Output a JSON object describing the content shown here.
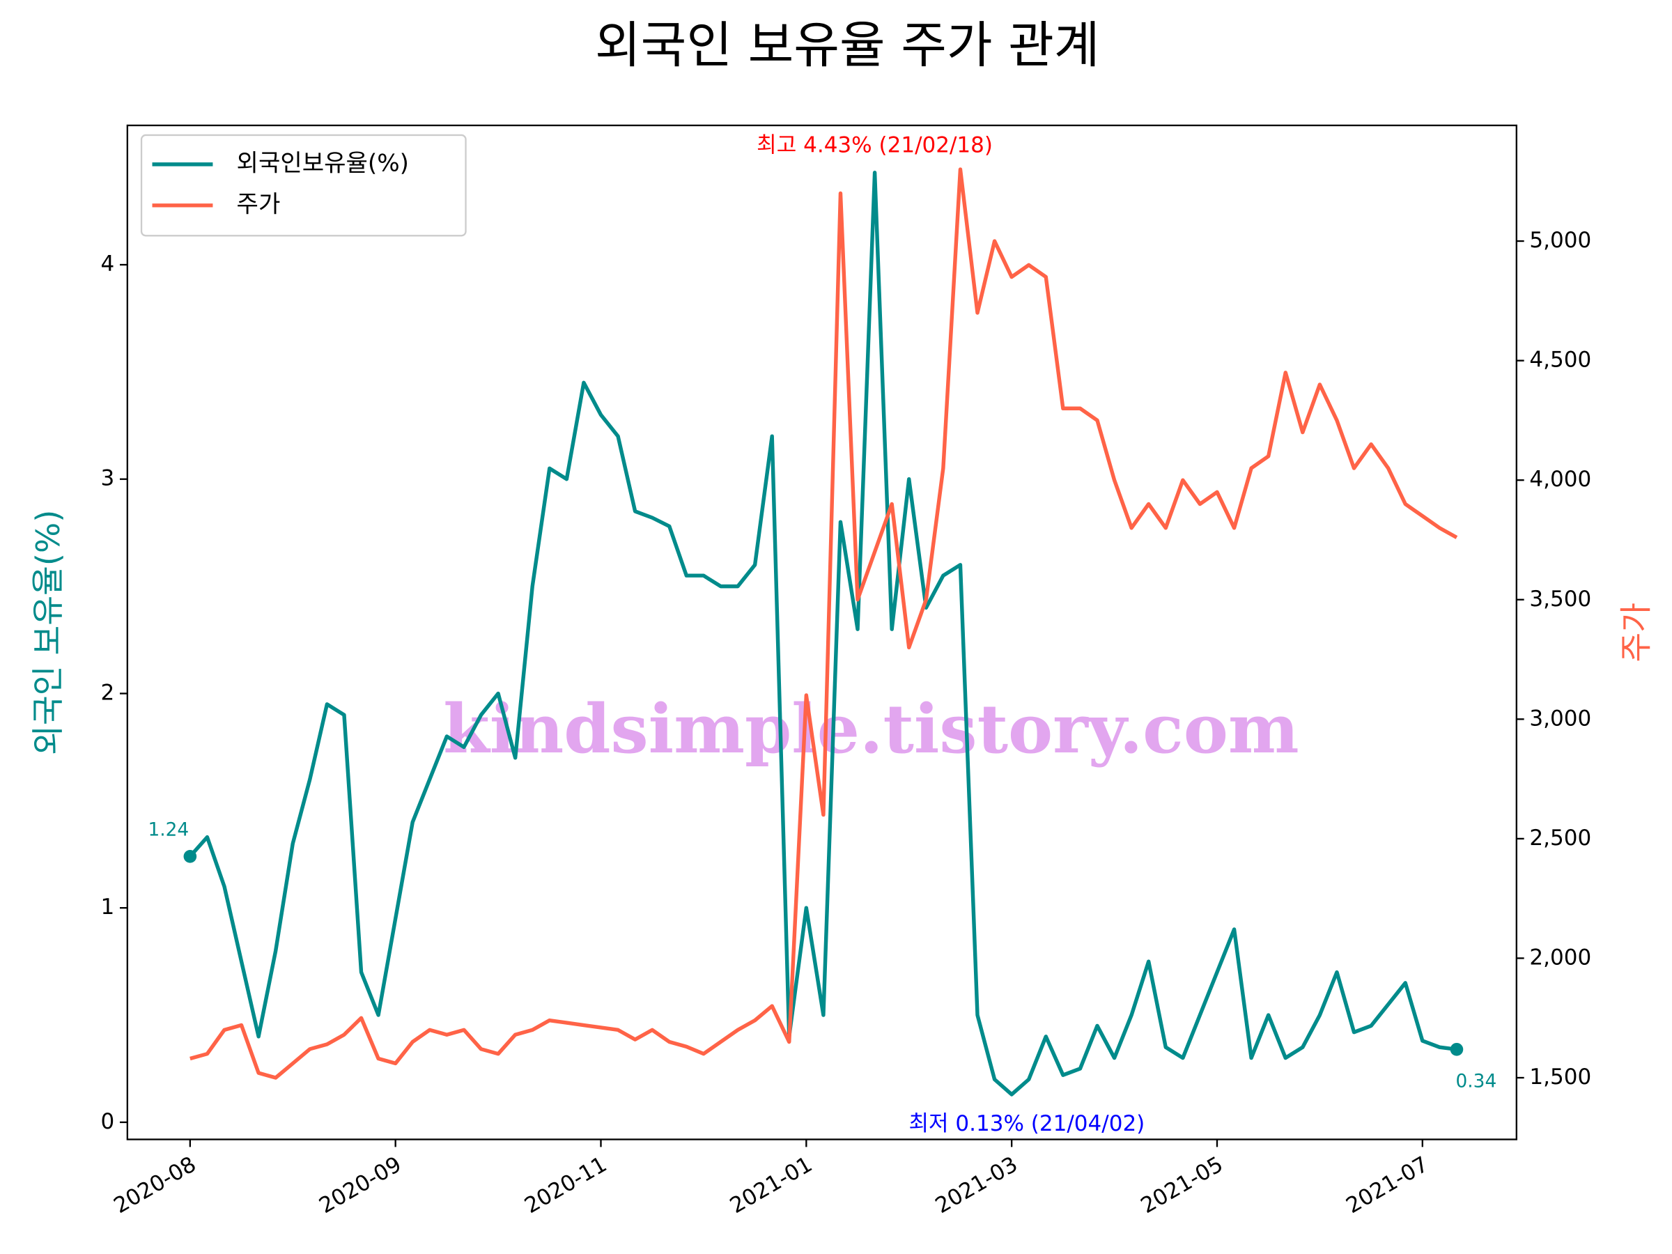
{
  "chart_data": {
    "type": "line",
    "title": "외국인 보유율 주가 관계",
    "ylabel": "외국인 보유율(%)",
    "y2label": "주가",
    "watermark": "kindsimple.tistory.com",
    "categories": [
      "2020-08",
      null,
      null,
      null,
      null,
      null,
      null,
      null,
      null,
      null,
      null,
      null,
      "2020-09",
      null,
      null,
      null,
      null,
      null,
      null,
      null,
      null,
      null,
      null,
      null,
      "2020-11",
      null,
      null,
      null,
      null,
      null,
      null,
      null,
      null,
      null,
      null,
      null,
      "2021-01",
      null,
      null,
      null,
      null,
      null,
      null,
      null,
      null,
      null,
      null,
      null,
      "2021-03",
      null,
      null,
      null,
      null,
      null,
      null,
      null,
      null,
      null,
      null,
      null,
      "2021-05",
      null,
      null,
      null,
      null,
      null,
      null,
      null,
      null,
      null,
      null,
      null,
      "2021-07",
      null,
      null
    ],
    "series": [
      {
        "name": "외국인보유율(%)",
        "color": "#008b8b",
        "values": [
          1.24,
          1.33,
          1.1,
          0.75,
          0.4,
          0.8,
          1.3,
          1.6,
          1.95,
          1.9,
          0.7,
          0.5,
          0.95,
          1.4,
          1.6,
          1.8,
          1.75,
          1.9,
          2.0,
          1.7,
          2.5,
          3.05,
          3.0,
          3.45,
          3.3,
          3.2,
          2.85,
          2.82,
          2.78,
          2.55,
          2.55,
          2.5,
          2.5,
          2.6,
          3.2,
          0.4,
          1.0,
          0.5,
          2.8,
          2.3,
          4.43,
          2.3,
          3.0,
          2.4,
          2.55,
          2.6,
          0.5,
          0.2,
          0.13,
          0.2,
          0.4,
          0.22,
          0.25,
          0.45,
          0.3,
          0.5,
          0.75,
          0.35,
          0.3,
          0.5,
          0.7,
          0.9,
          0.3,
          0.5,
          0.3,
          0.35,
          0.5,
          0.7,
          0.42,
          0.45,
          0.55,
          0.65,
          0.38,
          0.35,
          0.34
        ]
      },
      {
        "name": "주가",
        "color": "#ff6347",
        "axis": "y2",
        "values": [
          1580,
          1600,
          1700,
          1720,
          1520,
          1500,
          1560,
          1620,
          1640,
          1680,
          1750,
          1580,
          1560,
          1650,
          1700,
          1680,
          1700,
          1620,
          1600,
          1680,
          1700,
          1740,
          1730,
          1720,
          1710,
          1700,
          1660,
          1700,
          1650,
          1630,
          1600,
          1650,
          1700,
          1740,
          1800,
          1650,
          3100,
          2600,
          5200,
          3500,
          3700,
          3900,
          3300,
          3500,
          4050,
          5300,
          4700,
          5000,
          4850,
          4900,
          4850,
          4300,
          4300,
          4250,
          4000,
          3800,
          3900,
          3800,
          4000,
          3900,
          3950,
          3800,
          4050,
          4100,
          4450,
          4200,
          4400,
          4250,
          4050,
          4150,
          4050,
          3900,
          3850,
          3800,
          3760
        ]
      }
    ],
    "ylim": [
      -0.08,
      4.65
    ],
    "yticks": [
      0,
      1,
      2,
      3,
      4
    ],
    "y2lim": [
      1242,
      5484
    ],
    "y2ticks": [
      {
        "value": 1500,
        "label": "1,500"
      },
      {
        "value": 2000,
        "label": "2,000"
      },
      {
        "value": 2500,
        "label": "2,500"
      },
      {
        "value": 3000,
        "label": "3,000"
      },
      {
        "value": 3500,
        "label": "3,500"
      },
      {
        "value": 4000,
        "label": "4,000"
      },
      {
        "value": 4500,
        "label": "4,500"
      },
      {
        "value": 5000,
        "label": "5,000"
      }
    ],
    "legend": "upper left",
    "annotations": [
      {
        "text": "1.24",
        "series": 0,
        "index": 0,
        "color": "#008b8b"
      },
      {
        "text": "0.34",
        "series": 0,
        "index": 74,
        "color": "#008b8b"
      },
      {
        "text": "최고 4.43% (21/02/18)",
        "series": 0,
        "index": 40,
        "color": "#ff0000"
      },
      {
        "text": "최저 0.13% (21/04/02)",
        "series": 0,
        "index": 48,
        "color": "#0000ff"
      }
    ]
  }
}
